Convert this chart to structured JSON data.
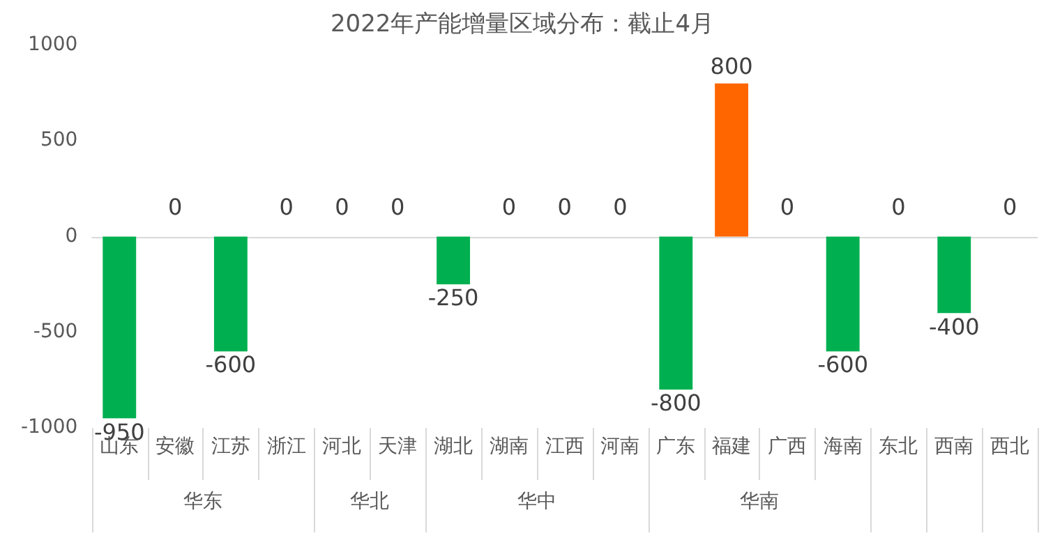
{
  "chart_data": {
    "type": "bar",
    "title": "2022年产能增量区域分布：截止4月",
    "categories": [
      "山东",
      "安徽",
      "江苏",
      "浙江",
      "河北",
      "天津",
      "湖北",
      "湖南",
      "江西",
      "河南",
      "广东",
      "福建",
      "广西",
      "海南",
      "东北",
      "西南",
      "西北"
    ],
    "values": [
      -950,
      0,
      -600,
      0,
      0,
      0,
      -250,
      0,
      0,
      0,
      -800,
      800,
      0,
      -600,
      0,
      -400,
      0
    ],
    "colors": [
      "#00b050",
      "#00b050",
      "#00b050",
      "#00b050",
      "#00b050",
      "#00b050",
      "#00b050",
      "#00b050",
      "#00b050",
      "#00b050",
      "#00b050",
      "#ff6600",
      "#00b050",
      "#00b050",
      "#00b050",
      "#00b050",
      "#00b050"
    ],
    "ylim": [
      -1000,
      1000
    ],
    "yticks": [
      -1000,
      -500,
      0,
      500,
      1000
    ],
    "data_labels": true,
    "annotations": [
      "华东",
      "华北",
      "华中",
      "华南"
    ]
  }
}
